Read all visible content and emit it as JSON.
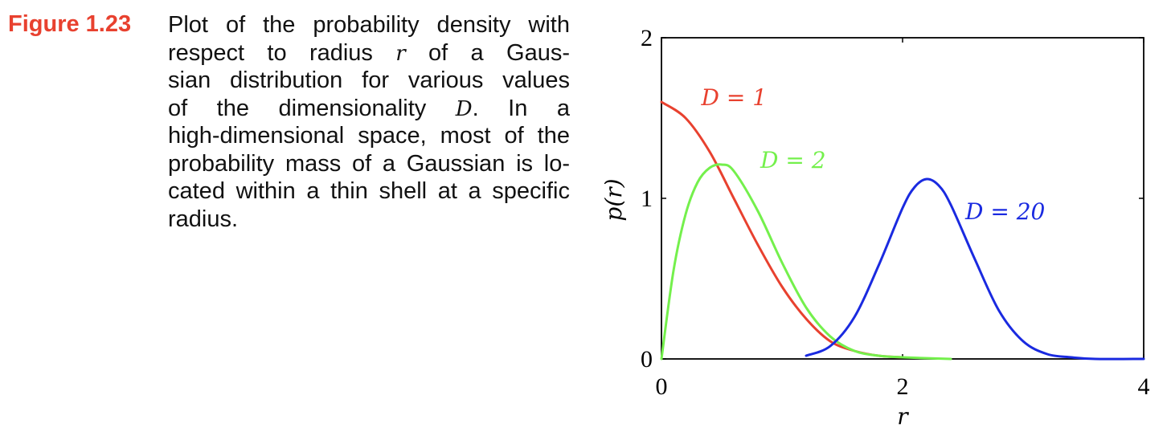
{
  "figure_label": "Figure 1.23",
  "caption": {
    "lines": [
      {
        "t": "Plot of the probability density with"
      },
      {
        "t": "respect to radius ",
        "m": "r",
        "a": " of a Gaus-"
      },
      {
        "t": "sian distribution for various values"
      },
      {
        "t": "of the dimensionality ",
        "m": "D",
        "a": ".    In a"
      },
      {
        "t": "high-dimensional space, most of the"
      },
      {
        "t": "probability mass of a Gaussian is lo-"
      },
      {
        "t": "cated within a thin shell at a specific"
      },
      {
        "t": "radius."
      }
    ]
  },
  "colors": {
    "caption_label": "#e8412f",
    "D1": "#e8412f",
    "D2": "#74f04c",
    "D20": "#1a2ae0",
    "axis": "#000000"
  },
  "chart_data": {
    "type": "line",
    "xlabel": "r",
    "ylabel": "p(r)",
    "xlim": [
      0,
      4
    ],
    "ylim": [
      0,
      2
    ],
    "xticks": [
      0,
      2,
      4
    ],
    "yticks": [
      0,
      1,
      2
    ],
    "grid": false,
    "series": [
      {
        "name": "D = 1",
        "color": "#e8412f",
        "x": [
          0,
          0.2,
          0.4,
          0.6,
          0.8,
          1.0,
          1.2,
          1.4,
          1.6,
          1.8,
          2.0
        ],
        "y": [
          1.6,
          1.5,
          1.29,
          1.0,
          0.71,
          0.45,
          0.25,
          0.11,
          0.05,
          0.02,
          0.01
        ]
      },
      {
        "name": "D = 2",
        "color": "#74f04c",
        "x": [
          0,
          0.1,
          0.2,
          0.3,
          0.4,
          0.5,
          0.6,
          0.8,
          1.0,
          1.2,
          1.4,
          1.6,
          1.8,
          2.0,
          2.4
        ],
        "y": [
          0,
          0.55,
          0.9,
          1.1,
          1.19,
          1.21,
          1.17,
          0.92,
          0.6,
          0.32,
          0.14,
          0.05,
          0.02,
          0.01,
          0
        ]
      },
      {
        "name": "D = 20",
        "color": "#1a2ae0",
        "x": [
          1.2,
          1.4,
          1.6,
          1.8,
          2.0,
          2.1,
          2.2,
          2.3,
          2.4,
          2.6,
          2.8,
          3.0,
          3.2,
          3.4,
          3.6,
          4.0
        ],
        "y": [
          0.02,
          0.08,
          0.26,
          0.58,
          0.94,
          1.07,
          1.12,
          1.08,
          0.96,
          0.62,
          0.3,
          0.11,
          0.03,
          0.01,
          0,
          0
        ]
      }
    ],
    "annotations": [
      {
        "series": "D = 1",
        "text": "D = 1",
        "x": 0.33,
        "y": 1.58
      },
      {
        "series": "D = 2",
        "text": "D = 2",
        "x": 0.82,
        "y": 1.19
      },
      {
        "series": "D = 20",
        "text": "D = 20",
        "x": 2.52,
        "y": 0.87
      }
    ]
  }
}
